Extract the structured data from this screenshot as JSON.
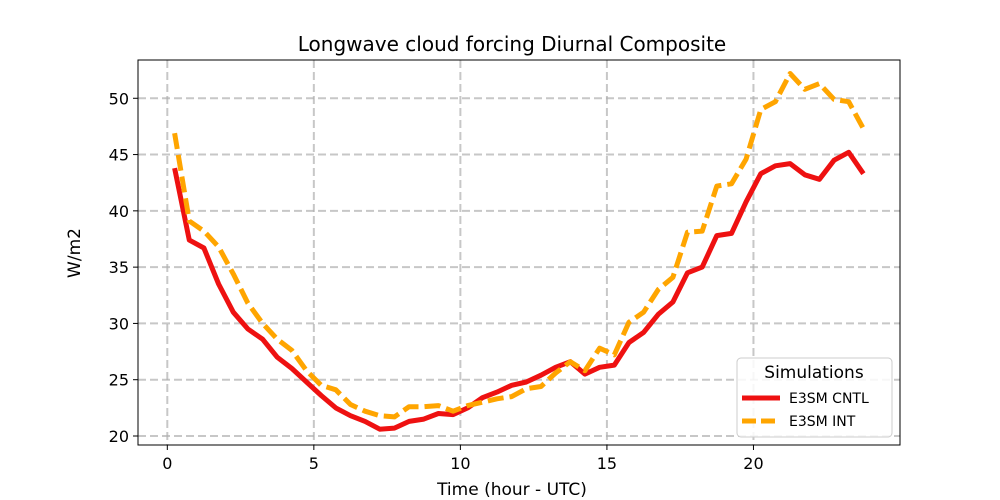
{
  "chart_data": {
    "type": "line",
    "title": "Longwave cloud forcing Diurnal Composite",
    "xlabel": "Time (hour - UTC)",
    "ylabel": "W/m2",
    "xlim": [
      -1,
      25
    ],
    "ylim": [
      19.2,
      53.4
    ],
    "xticks": [
      0,
      5,
      10,
      15,
      20
    ],
    "xtick_labels": [
      "0",
      "5",
      "10",
      "15",
      "20"
    ],
    "yticks": [
      20,
      25,
      30,
      35,
      40,
      45,
      50
    ],
    "ytick_labels": [
      "20",
      "25",
      "30",
      "35",
      "40",
      "45",
      "50"
    ],
    "grid": true,
    "legend": {
      "title": "Simulations",
      "position": "lower-right"
    },
    "x": [
      0.25,
      0.75,
      1.25,
      1.75,
      2.25,
      2.75,
      3.25,
      3.75,
      4.25,
      4.75,
      5.25,
      5.75,
      6.25,
      6.75,
      7.25,
      7.75,
      8.25,
      8.75,
      9.25,
      9.75,
      10.25,
      10.75,
      11.25,
      11.75,
      12.25,
      12.75,
      13.25,
      13.75,
      14.25,
      14.75,
      15.25,
      15.75,
      16.25,
      16.75,
      17.25,
      17.75,
      18.25,
      18.75,
      19.25,
      19.75,
      20.25,
      20.75,
      21.25,
      21.75,
      22.25,
      22.75,
      23.25,
      23.75
    ],
    "series": [
      {
        "name": "E3SM CNTL",
        "color": "#ee1111",
        "style": "solid",
        "values": [
          43.8,
          37.4,
          36.7,
          33.5,
          31.0,
          29.5,
          28.6,
          27.0,
          26.0,
          24.8,
          23.6,
          22.5,
          21.8,
          21.3,
          20.6,
          20.7,
          21.3,
          21.5,
          22.0,
          21.9,
          22.5,
          23.4,
          23.9,
          24.5,
          24.8,
          25.4,
          26.1,
          26.6,
          25.5,
          26.1,
          26.3,
          28.3,
          29.2,
          30.8,
          31.9,
          34.5,
          35.0,
          37.8,
          38.0,
          40.8,
          43.3,
          44.0,
          44.2,
          43.2,
          42.8,
          44.5,
          45.2,
          43.3
        ]
      },
      {
        "name": "E3SM INT",
        "color": "#ffa500",
        "style": "dashed",
        "values": [
          46.9,
          39.1,
          38.2,
          36.8,
          34.4,
          31.8,
          30.0,
          28.6,
          27.6,
          25.8,
          24.5,
          24.1,
          22.8,
          22.2,
          21.8,
          21.7,
          22.6,
          22.6,
          22.7,
          22.2,
          22.7,
          23.0,
          23.3,
          23.5,
          24.2,
          24.4,
          25.6,
          26.6,
          25.8,
          27.8,
          27.2,
          30.1,
          31.0,
          33.0,
          34.1,
          38.1,
          38.2,
          42.2,
          42.4,
          44.6,
          49.0,
          49.7,
          52.2,
          50.8,
          51.3,
          49.9,
          49.7,
          47.3
        ]
      }
    ]
  }
}
